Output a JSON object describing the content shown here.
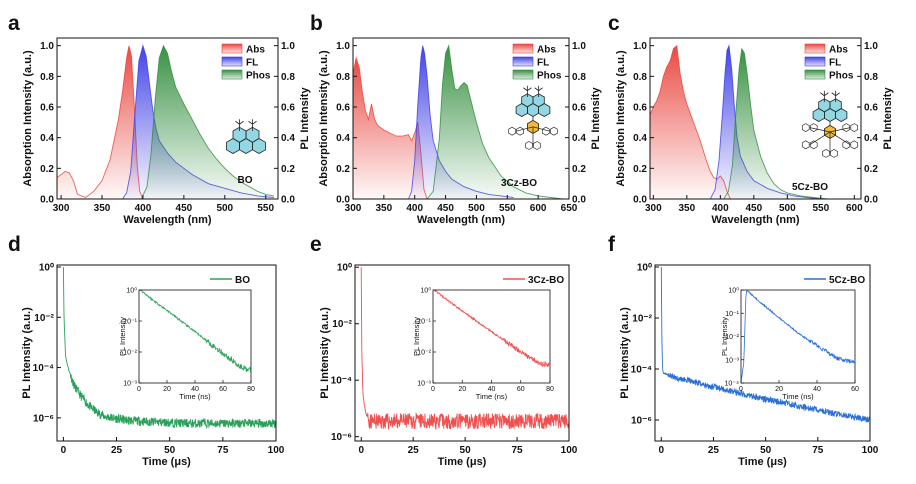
{
  "figure": {
    "panel_labels": [
      "a",
      "b",
      "c",
      "d",
      "e",
      "f"
    ],
    "colors": {
      "abs": "#e8413a",
      "fl": "#3a3ae6",
      "phos": "#2e8b3a",
      "bo_decay": "#2aa15a",
      "cz3_decay": "#ef5050",
      "cz5_decay": "#2a6fd6",
      "molecule": "#39b7c9"
    }
  },
  "chart_data": [
    {
      "type": "area",
      "panel": "a",
      "molecule_label": "BO",
      "xlabel": "Wavelength (nm)",
      "ylabel_left": "Absorption Intensity (a.u.)",
      "ylabel_right": "PL Intensity",
      "xlim": [
        295,
        565
      ],
      "ylim": [
        0,
        1.05
      ],
      "xticks": [
        "300",
        "350",
        "400",
        "450",
        "500",
        "550"
      ],
      "yticks_left": [
        "0.0",
        "0.2",
        "0.4",
        "0.6",
        "0.8",
        "1.0"
      ],
      "yticks_right": [
        "0.0",
        "0.2",
        "0.4",
        "0.6",
        "0.8",
        "1.0"
      ],
      "legend": [
        "Abs",
        "FL",
        "Phos"
      ],
      "legend_position": "top-right",
      "series": [
        {
          "name": "Abs",
          "x": [
            295,
            300,
            305,
            310,
            315,
            320,
            330,
            340,
            350,
            360,
            370,
            375,
            380,
            383,
            386,
            390,
            393,
            396,
            400
          ],
          "y": [
            0.14,
            0.16,
            0.18,
            0.17,
            0.12,
            0.03,
            0.01,
            0.05,
            0.12,
            0.26,
            0.52,
            0.7,
            0.92,
            1.0,
            0.93,
            0.55,
            0.22,
            0.05,
            0.0
          ]
        },
        {
          "name": "FL",
          "x": [
            375,
            380,
            385,
            390,
            395,
            400,
            404,
            408,
            412,
            416,
            420,
            430,
            440,
            460,
            480,
            500,
            520,
            540,
            560
          ],
          "y": [
            0.0,
            0.04,
            0.18,
            0.55,
            0.9,
            1.0,
            0.93,
            0.75,
            0.58,
            0.46,
            0.38,
            0.3,
            0.24,
            0.16,
            0.1,
            0.07,
            0.04,
            0.02,
            0.01
          ]
        },
        {
          "name": "Phos",
          "x": [
            398,
            405,
            410,
            415,
            420,
            425,
            430,
            435,
            440,
            450,
            460,
            470,
            480,
            490,
            500,
            510,
            520,
            530,
            540,
            550,
            560
          ],
          "y": [
            0.0,
            0.08,
            0.3,
            0.65,
            0.92,
            1.0,
            0.95,
            0.83,
            0.73,
            0.62,
            0.52,
            0.42,
            0.33,
            0.26,
            0.2,
            0.15,
            0.11,
            0.08,
            0.05,
            0.03,
            0.02
          ]
        }
      ]
    },
    {
      "type": "area",
      "panel": "b",
      "molecule_label": "3Cz-BO",
      "xlabel": "Wavelength (nm)",
      "ylabel_left": "Absorption Intensity (a.u.)",
      "ylabel_right": "PL Intensity",
      "xlim": [
        300,
        650
      ],
      "ylim": [
        0,
        1.05
      ],
      "xticks": [
        "300",
        "350",
        "400",
        "450",
        "500",
        "550",
        "600",
        "650"
      ],
      "yticks_left": [
        "0.0",
        "0.2",
        "0.4",
        "0.6",
        "0.8",
        "1.0"
      ],
      "yticks_right": [
        "0.0",
        "0.2",
        "0.4",
        "0.6",
        "0.8",
        "1.0"
      ],
      "legend": [
        "Abs",
        "FL",
        "Phos"
      ],
      "legend_position": "top-right",
      "series": [
        {
          "name": "Abs",
          "x": [
            300,
            305,
            310,
            315,
            320,
            325,
            330,
            335,
            340,
            350,
            360,
            370,
            380,
            390,
            395,
            400,
            405,
            410,
            415,
            420
          ],
          "y": [
            0.82,
            0.92,
            0.86,
            0.7,
            0.58,
            0.52,
            0.62,
            0.52,
            0.48,
            0.45,
            0.43,
            0.41,
            0.41,
            0.42,
            0.38,
            0.43,
            0.5,
            0.3,
            0.06,
            0.0
          ]
        },
        {
          "name": "FL",
          "x": [
            390,
            395,
            400,
            405,
            410,
            413,
            416,
            420,
            425,
            430,
            440,
            450,
            460,
            480,
            500,
            520,
            540,
            560
          ],
          "y": [
            0.0,
            0.05,
            0.25,
            0.62,
            0.92,
            1.0,
            0.95,
            0.8,
            0.55,
            0.38,
            0.25,
            0.18,
            0.13,
            0.08,
            0.05,
            0.03,
            0.02,
            0.01
          ]
        },
        {
          "name": "Phos",
          "x": [
            420,
            430,
            440,
            445,
            450,
            455,
            460,
            465,
            470,
            475,
            480,
            485,
            490,
            500,
            510,
            520,
            540,
            560,
            580,
            600,
            620,
            640
          ],
          "y": [
            0.0,
            0.05,
            0.4,
            0.75,
            0.95,
            1.0,
            0.85,
            0.72,
            0.71,
            0.74,
            0.76,
            0.74,
            0.66,
            0.5,
            0.36,
            0.27,
            0.15,
            0.08,
            0.04,
            0.02,
            0.01,
            0.0
          ]
        }
      ]
    },
    {
      "type": "area",
      "panel": "c",
      "molecule_label": "5Cz-BO",
      "xlabel": "Wavelength (nm)",
      "ylabel_left": "Absorption Intensity (a.u.)",
      "ylabel_right": "PL Intensity",
      "xlim": [
        295,
        610
      ],
      "ylim": [
        0,
        1.05
      ],
      "xticks": [
        "300",
        "350",
        "400",
        "450",
        "500",
        "550",
        "600"
      ],
      "yticks_left": [
        "0.0",
        "0.2",
        "0.4",
        "0.6",
        "0.8",
        "1.0"
      ],
      "yticks_right": [
        "0.0",
        "0.2",
        "0.4",
        "0.6",
        "0.8",
        "1.0"
      ],
      "legend": [
        "Abs",
        "FL",
        "Phos"
      ],
      "legend_position": "top-right",
      "series": [
        {
          "name": "Abs",
          "x": [
            295,
            300,
            305,
            310,
            315,
            320,
            325,
            330,
            335,
            340,
            345,
            350,
            360,
            370,
            380,
            385,
            390,
            395,
            400,
            405,
            410,
            415
          ],
          "y": [
            0.55,
            0.6,
            0.64,
            0.7,
            0.8,
            0.86,
            0.9,
            0.98,
            1.0,
            0.82,
            0.7,
            0.62,
            0.5,
            0.38,
            0.24,
            0.18,
            0.14,
            0.13,
            0.15,
            0.12,
            0.05,
            0.0
          ]
        },
        {
          "name": "FL",
          "x": [
            385,
            392,
            398,
            403,
            407,
            410,
            413,
            417,
            421,
            425,
            430,
            440,
            450,
            470,
            490,
            510,
            530,
            550
          ],
          "y": [
            0.0,
            0.06,
            0.25,
            0.55,
            0.82,
            0.97,
            1.0,
            0.85,
            0.6,
            0.4,
            0.28,
            0.18,
            0.12,
            0.07,
            0.04,
            0.02,
            0.01,
            0.0
          ]
        },
        {
          "name": "Phos",
          "x": [
            405,
            412,
            418,
            423,
            428,
            432,
            436,
            440,
            445,
            450,
            460,
            470,
            480,
            490,
            500,
            520,
            540,
            560
          ],
          "y": [
            0.0,
            0.05,
            0.22,
            0.55,
            0.85,
            0.98,
            0.95,
            0.82,
            0.62,
            0.45,
            0.28,
            0.17,
            0.1,
            0.06,
            0.04,
            0.02,
            0.01,
            0.0
          ]
        }
      ]
    },
    {
      "type": "line",
      "panel": "d",
      "xlabel": "Time (μs)",
      "ylabel": "PL Intensity (a.u.)",
      "xlim": [
        -3,
        100
      ],
      "ylim": [
        1.2e-07,
        1.2
      ],
      "yscale": "log",
      "xticks": [
        "0",
        "25",
        "50",
        "75",
        "100"
      ],
      "legend": [
        "BO"
      ],
      "legend_position": "top-right",
      "series": [
        {
          "name": "BO",
          "x": [
            0,
            0.3,
            1,
            2,
            3,
            5,
            8,
            12,
            16,
            20,
            30,
            40,
            60,
            80,
            100
          ],
          "y": [
            1.0,
            0.01,
            0.0003,
            0.00012,
            6e-05,
            2e-05,
            8e-06,
            3e-06,
            1.6e-06,
            1.1e-06,
            8e-07,
            7e-07,
            6e-07,
            6e-07,
            6e-07
          ]
        }
      ],
      "inset": {
        "xlabel": "Time (ns)",
        "ylabel": "PL Intensity",
        "xlim": [
          0,
          80
        ],
        "xticks": [
          "0",
          "20",
          "40",
          "60",
          "80"
        ],
        "ylim": [
          0.001,
          1
        ],
        "series": [
          {
            "name": "BO",
            "x": [
              0,
              1,
              10,
              20,
              40,
              60,
              72,
              80
            ],
            "y": [
              1.0,
              1.0,
              0.47,
              0.22,
              0.045,
              0.009,
              0.0035,
              0.0025
            ]
          }
        ]
      }
    },
    {
      "type": "line",
      "panel": "e",
      "xlabel": "Time (μs)",
      "ylabel": "PL Intensity (a.u.)",
      "xlim": [
        -3,
        100
      ],
      "ylim": [
        7e-07,
        1.2
      ],
      "yscale": "log",
      "xticks": [
        "0",
        "25",
        "50",
        "75",
        "100"
      ],
      "legend": [
        "3Cz-BO"
      ],
      "legend_position": "top-right",
      "series": [
        {
          "name": "3Cz-BO",
          "x": [
            0,
            0.3,
            0.8,
            1.5,
            2.5,
            4,
            100
          ],
          "y": [
            1.0,
            0.001,
            4e-05,
            1.2e-05,
            6e-06,
            3.5e-06,
            3.5e-06
          ]
        }
      ],
      "inset": {
        "xlabel": "Time (ns)",
        "ylabel": "PL Intensity",
        "xlim": [
          0,
          80
        ],
        "xticks": [
          "0",
          "20",
          "40",
          "60",
          "80"
        ],
        "ylim": [
          0.001,
          1
        ],
        "series": [
          {
            "name": "3Cz-BO",
            "x": [
              0,
              1,
              10,
              20,
              40,
              60,
              75,
              80
            ],
            "y": [
              1.0,
              1.0,
              0.47,
              0.21,
              0.045,
              0.01,
              0.004,
              0.004
            ]
          }
        ]
      }
    },
    {
      "type": "line",
      "panel": "f",
      "xlabel": "Time (μs)",
      "ylabel": "PL Intensity (a.u.)",
      "xlim": [
        -3,
        100
      ],
      "ylim": [
        1.5e-07,
        1.2
      ],
      "yscale": "log",
      "xticks": [
        "0",
        "25",
        "50",
        "75",
        "100"
      ],
      "legend": [
        "5Cz-BO"
      ],
      "legend_position": "top-right",
      "series": [
        {
          "name": "5Cz-BO",
          "x": [
            0,
            0.3,
            0.6,
            1.0,
            5,
            10,
            20,
            30,
            40,
            50,
            60,
            70,
            80,
            90,
            100
          ],
          "y": [
            1.0,
            0.001,
            0.0001,
            7e-05,
            5.2e-05,
            4e-05,
            2.5e-05,
            1.6e-05,
            1e-05,
            6.5e-06,
            4.5e-06,
            3e-06,
            2e-06,
            1.4e-06,
            1e-06
          ]
        }
      ],
      "inset": {
        "xlabel": "Time (ns)",
        "ylabel": "PL Intensity",
        "xlim": [
          0,
          60
        ],
        "xticks": [
          "0",
          "20",
          "40",
          "60"
        ],
        "ylim": [
          0.0001,
          1
        ],
        "series": [
          {
            "name": "5Cz-BO",
            "x": [
              0,
              1.5,
              2.5,
              3,
              10,
              20,
              30,
              40,
              50,
              55,
              60
            ],
            "y": [
              0.0001,
              0.0008,
              0.4,
              1.0,
              0.3,
              0.065,
              0.014,
              0.004,
              0.0012,
              0.0009,
              0.0008
            ]
          }
        ]
      }
    }
  ]
}
